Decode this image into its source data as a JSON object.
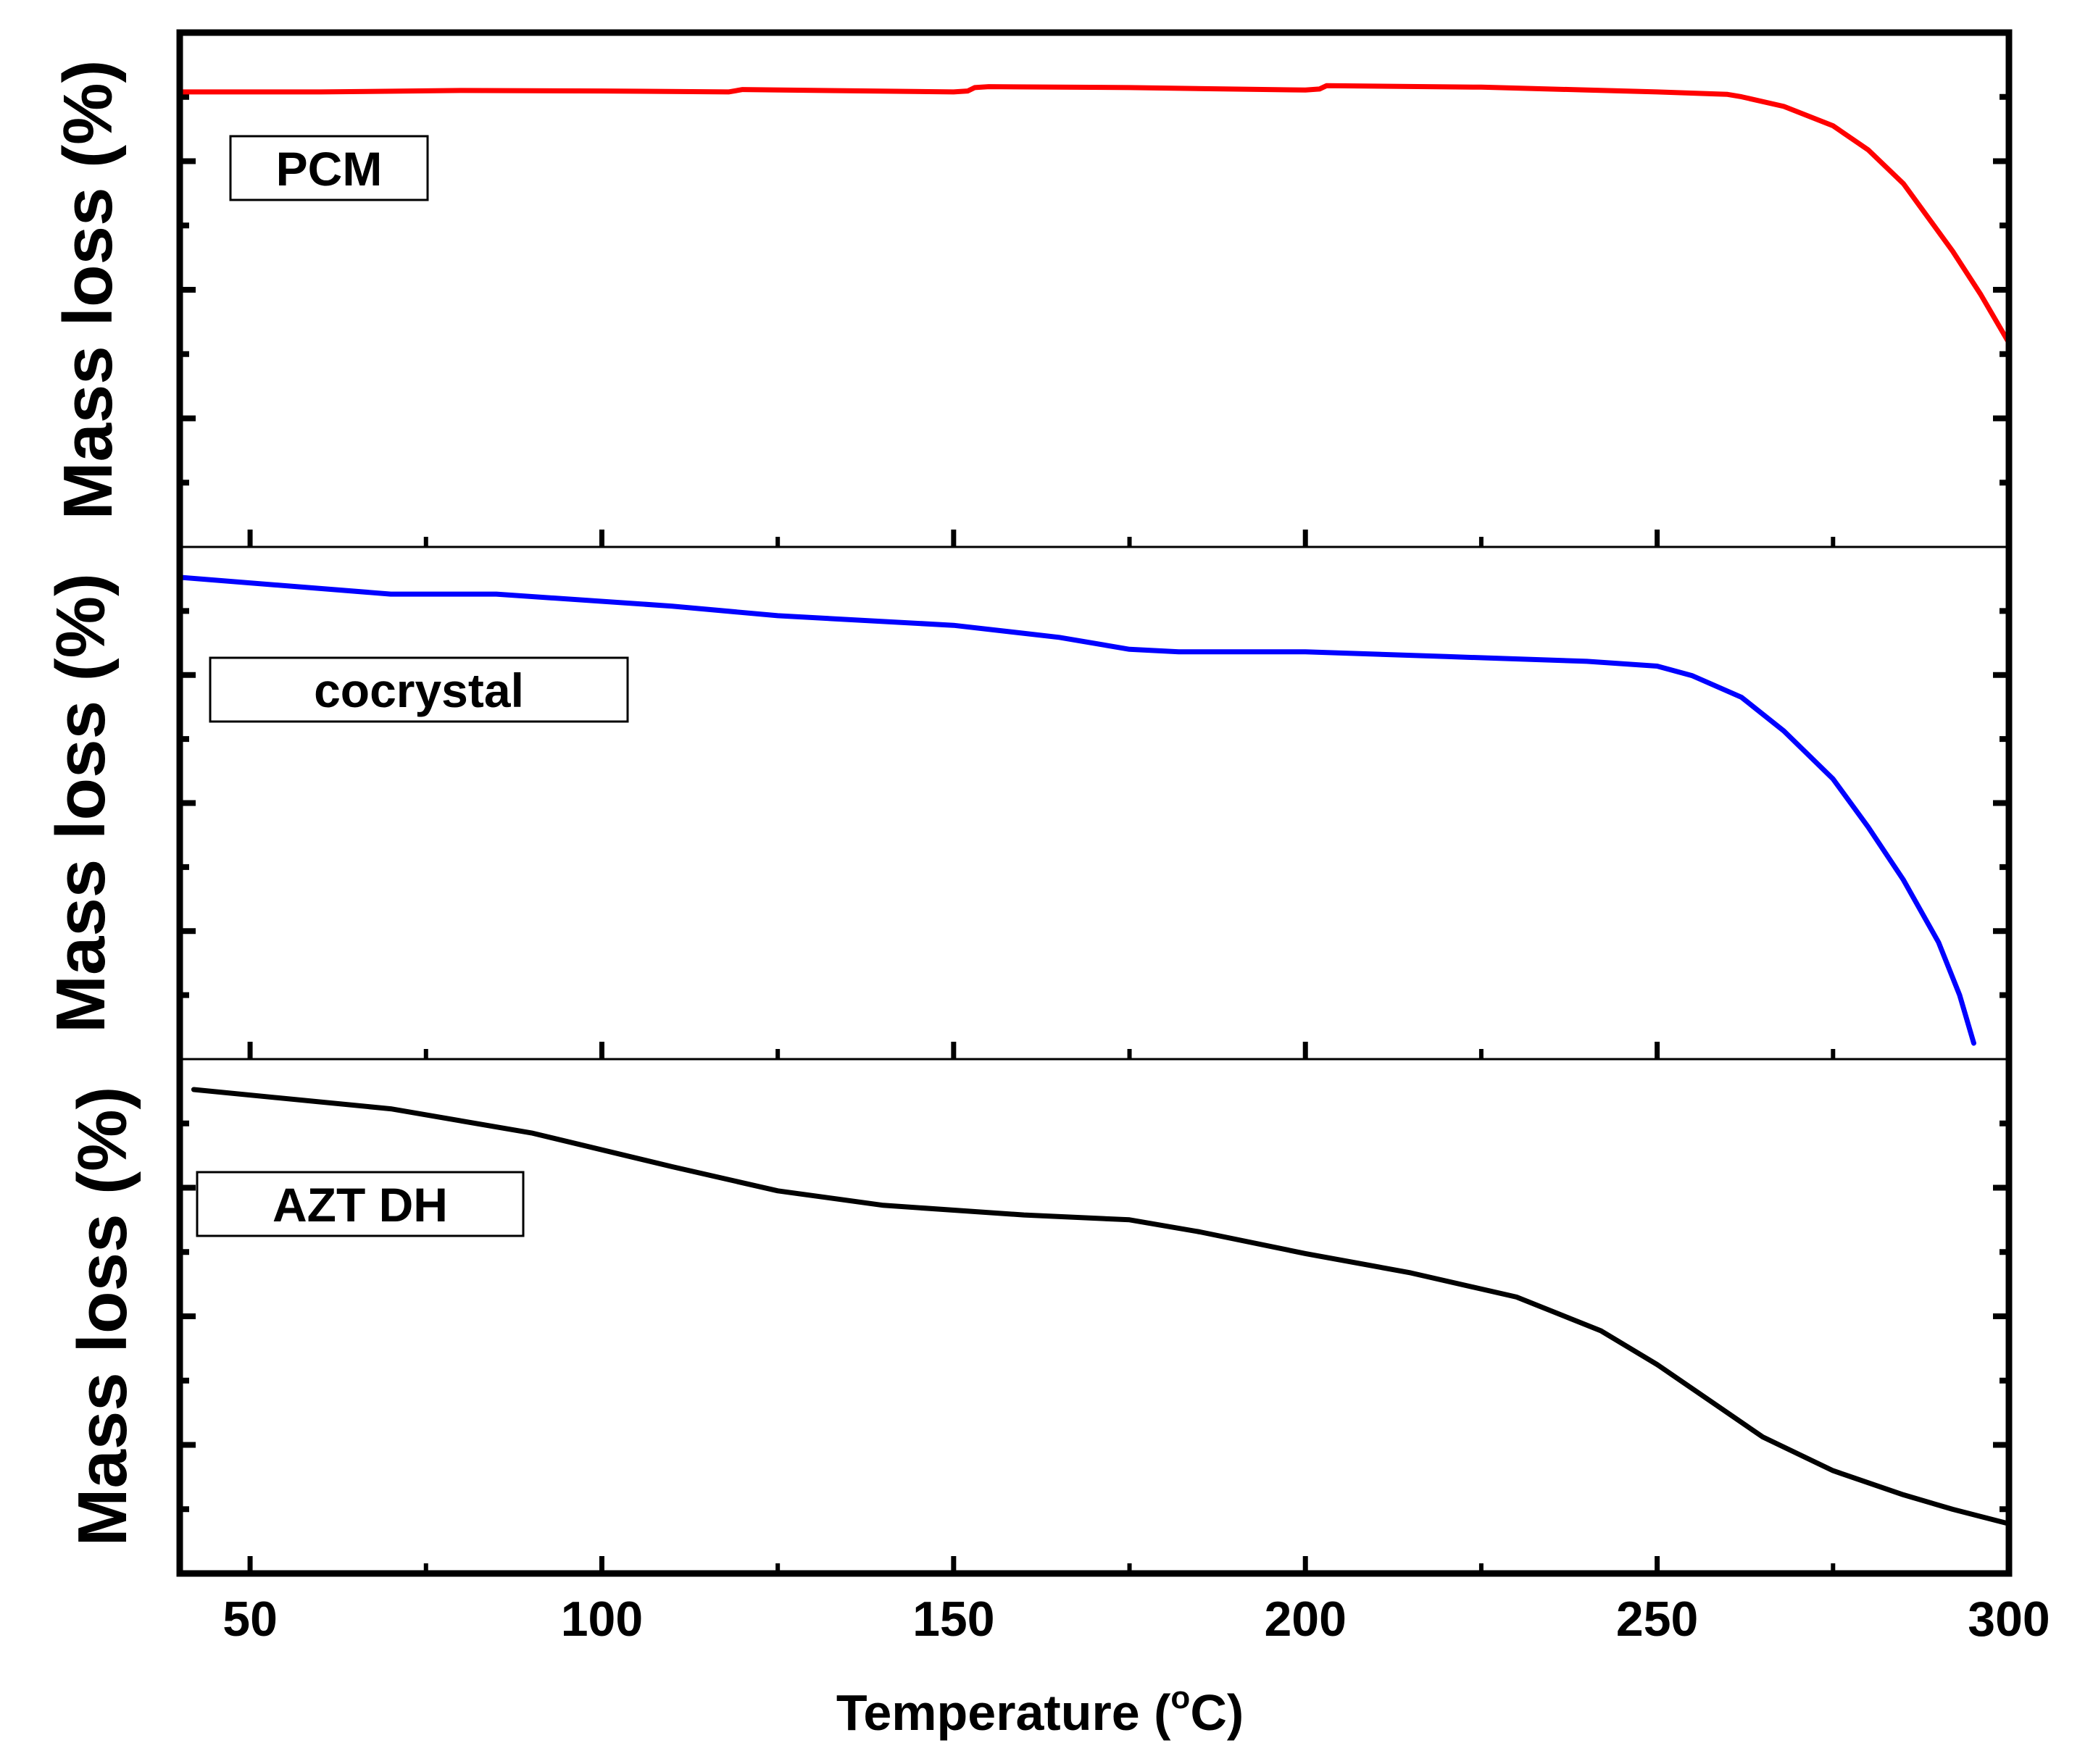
{
  "chart_data": {
    "type": "line",
    "title": "",
    "xlabel": "Temperature (°C)",
    "xlabel_parts": {
      "prefix": "Temperature (",
      "superscript": "o",
      "suffix": "C)"
    },
    "xlim": [
      40,
      300
    ],
    "xticks": [
      50,
      100,
      150,
      200,
      250,
      300
    ],
    "xtick_labels": [
      "50",
      "100",
      "150",
      "200",
      "250",
      "300"
    ],
    "grid": false,
    "panels": [
      {
        "label": "PCM",
        "ylabel": "Mass loss (%)",
        "color": "#ff0000",
        "ylim": [
          0,
          100
        ],
        "yticks_labeled": false,
        "x": [
          40,
          60,
          80,
          100,
          118,
          120,
          150,
          152,
          153,
          155,
          175,
          200,
          202,
          203,
          225,
          250,
          260,
          262,
          268,
          275,
          280,
          285,
          288,
          292,
          296,
          300
        ],
        "y": [
          91,
          91,
          91.3,
          91.2,
          91,
          91.5,
          91,
          91.2,
          91.9,
          92.1,
          91.9,
          91.4,
          91.6,
          92.3,
          92,
          91,
          90.5,
          90,
          88,
          84,
          79,
          72,
          66,
          58,
          49,
          39
        ]
      },
      {
        "label": "cocrystal",
        "ylabel": "Mass loss (%)",
        "color": "#0000ff",
        "ylim": [
          0,
          100
        ],
        "yticks_labeled": false,
        "x": [
          40,
          70,
          85,
          110,
          125,
          150,
          165,
          175,
          182,
          200,
          220,
          240,
          250,
          255,
          262,
          268,
          275,
          280,
          285,
          290,
          293,
          295
        ],
        "y": [
          97,
          93.5,
          93.5,
          91,
          89,
          87,
          84.5,
          82,
          81.5,
          81.5,
          80.5,
          79.5,
          78.5,
          76.5,
          72,
          65,
          55,
          45,
          34,
          21,
          10,
          0
        ]
      },
      {
        "label": "AZT DH",
        "ylabel": "Mass loss (%)",
        "color": "#000000",
        "ylim": [
          0,
          100
        ],
        "yticks_labeled": false,
        "x": [
          42,
          70,
          90,
          110,
          125,
          140,
          160,
          175,
          185,
          200,
          215,
          230,
          242,
          250,
          258,
          265,
          275,
          285,
          292,
          300
        ],
        "y": [
          97,
          93,
          88,
          81,
          76,
          73,
          71,
          70,
          67.5,
          63,
          59,
          54,
          47,
          40,
          32,
          25,
          18,
          13,
          10,
          7
        ]
      }
    ]
  }
}
